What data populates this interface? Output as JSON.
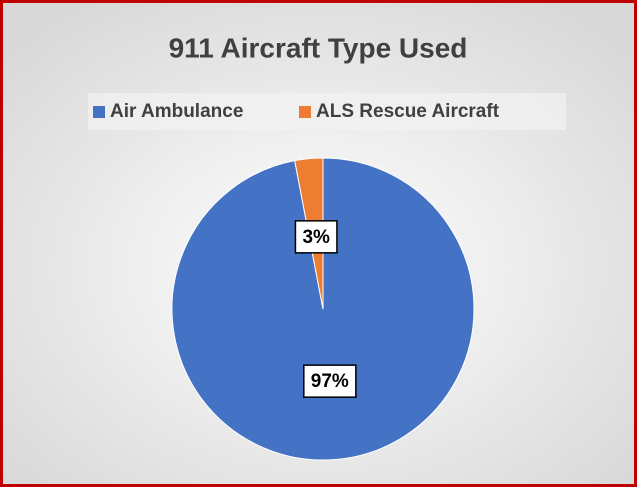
{
  "chart_data": {
    "type": "pie",
    "title": "911 Aircraft Type Used",
    "categories": [
      "Air Ambulance",
      "ALS Rescue Aircraft"
    ],
    "values": [
      97,
      3
    ],
    "value_labels": [
      "97%",
      "3%"
    ],
    "colors": [
      "#4472c4",
      "#ed7d31"
    ],
    "legend": "top"
  }
}
